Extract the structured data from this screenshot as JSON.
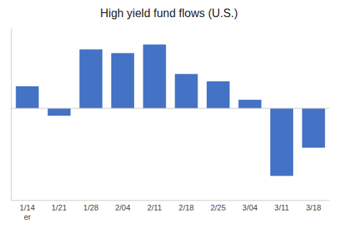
{
  "chart_data": {
    "type": "bar",
    "title": "High yield fund flows (U.S.)",
    "categories": [
      "1/14\ner",
      "1/21",
      "1/28",
      "2/04",
      "2/11",
      "2/18",
      "2/25",
      "3/04",
      "3/11",
      "3/18"
    ],
    "values": [
      1.8,
      -0.6,
      4.8,
      4.5,
      5.2,
      2.8,
      2.2,
      0.7,
      -5.5,
      -3.2
    ],
    "color": "#4472C4",
    "ylim": [
      -7.5,
      6.5
    ],
    "grid": false,
    "tick_labels": "x"
  }
}
